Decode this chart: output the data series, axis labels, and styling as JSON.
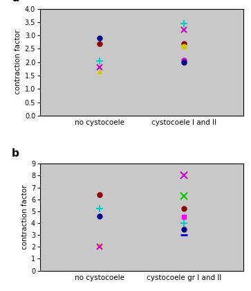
{
  "panel_a": {
    "title": "a",
    "ylabel": "contraction factor",
    "ylim": [
      0,
      4
    ],
    "yticks": [
      0,
      0.5,
      1.0,
      1.5,
      2.0,
      2.5,
      3.0,
      3.5,
      4.0
    ],
    "xticklabels": [
      "no cystocoele",
      "cystocoele I and II"
    ],
    "groups": {
      "no cystocoele": [
        {
          "y": 2.9,
          "color": "#00008B",
          "marker": "o",
          "ms": 5
        },
        {
          "y": 2.7,
          "color": "#8B0000",
          "marker": "o",
          "ms": 5
        },
        {
          "y": 2.05,
          "color": "#00CCCC",
          "marker": "+",
          "ms": 7,
          "mew": 1.5
        },
        {
          "y": 1.8,
          "color": "#CC00CC",
          "marker": "x",
          "ms": 6,
          "mew": 1.5
        },
        {
          "y": 1.65,
          "color": "#CCCC00",
          "marker": "^",
          "ms": 5
        }
      ],
      "cystocoele I and II": [
        {
          "y": 3.45,
          "color": "#00CCCC",
          "marker": "+",
          "ms": 7,
          "mew": 1.5
        },
        {
          "y": 3.2,
          "color": "#CC00CC",
          "marker": "x",
          "ms": 6,
          "mew": 1.5
        },
        {
          "y": 2.7,
          "color": "#8B0000",
          "marker": "o",
          "ms": 5
        },
        {
          "y": 2.6,
          "color": "#CCCC00",
          "marker": "o",
          "ms": 5
        },
        {
          "y": 2.07,
          "color": "#CC00CC",
          "marker": "o",
          "ms": 5
        },
        {
          "y": 2.0,
          "color": "#00008B",
          "marker": "o",
          "ms": 5
        }
      ]
    }
  },
  "panel_b": {
    "title": "b",
    "ylabel": "contraction factor",
    "ylim": [
      0,
      9
    ],
    "yticks": [
      0,
      1,
      2,
      3,
      4,
      5,
      6,
      7,
      8,
      9
    ],
    "xticklabels": [
      "no cystocoele",
      "cystocoele gr I and II"
    ],
    "groups": {
      "no cystocoele": [
        {
          "y": 6.4,
          "color": "#8B0000",
          "marker": "o",
          "ms": 5
        },
        {
          "y": 5.2,
          "color": "#00CCCC",
          "marker": "+",
          "ms": 7,
          "mew": 1.5
        },
        {
          "y": 4.6,
          "color": "#00008B",
          "marker": "o",
          "ms": 5
        },
        {
          "y": 2.05,
          "color": "#CCCC00",
          "marker": "o",
          "ms": 4
        },
        {
          "y": 2.0,
          "color": "#CC00CC",
          "marker": "x",
          "ms": 6,
          "mew": 1.5
        }
      ],
      "cystocoele gr I and II": [
        {
          "y": 8.0,
          "color": "#CC00CC",
          "marker": "x",
          "ms": 7,
          "mew": 1.5
        },
        {
          "y": 6.3,
          "color": "#00CC00",
          "marker": "x",
          "ms": 7,
          "mew": 1.5
        },
        {
          "y": 5.2,
          "color": "#8B0000",
          "marker": "o",
          "ms": 5
        },
        {
          "y": 4.5,
          "color": "#FF00FF",
          "marker": "s",
          "ms": 5
        },
        {
          "y": 4.0,
          "color": "#00CCCC",
          "marker": "+",
          "ms": 7,
          "mew": 1.5
        },
        {
          "y": 3.5,
          "color": "#00008B",
          "marker": "o",
          "ms": 5
        },
        {
          "y": 3.0,
          "color": "#0000CC",
          "marker": "_",
          "ms": 7,
          "mew": 2
        }
      ]
    }
  },
  "bg_color": "#C8C8C8",
  "fig_bg": "#FFFFFF",
  "label_fontsize": 7.5,
  "tick_fontsize": 7,
  "title_fontsize": 11
}
